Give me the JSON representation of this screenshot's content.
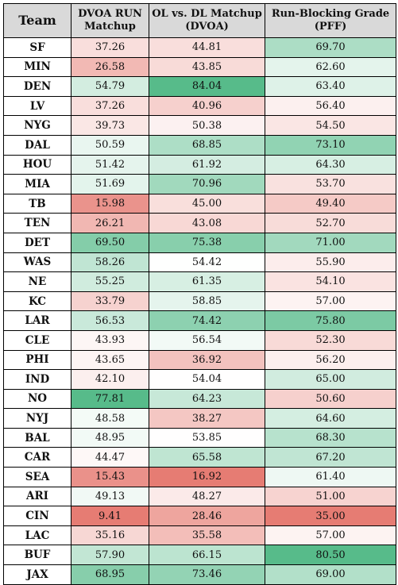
{
  "headers": {
    "team": "Team",
    "dvoa_line1": "DVOA RUN",
    "dvoa_line2": "Matchup",
    "ol_line1": "OL vs. DL Matchup",
    "ol_line2": "(DVOA)",
    "grade_line1": "Run-Blocking Grade",
    "grade_line2": "(PFF)"
  },
  "rows": [
    {
      "team": "SF",
      "dvoa": "37.26",
      "ol": "44.81",
      "grade": "69.70"
    },
    {
      "team": "MIN",
      "dvoa": "26.58",
      "ol": "43.85",
      "grade": "62.60"
    },
    {
      "team": "DEN",
      "dvoa": "54.79",
      "ol": "84.04",
      "grade": "63.40"
    },
    {
      "team": "LV",
      "dvoa": "37.26",
      "ol": "40.96",
      "grade": "56.40"
    },
    {
      "team": "NYG",
      "dvoa": "39.73",
      "ol": "50.38",
      "grade": "54.50"
    },
    {
      "team": "DAL",
      "dvoa": "50.59",
      "ol": "68.85",
      "grade": "73.10"
    },
    {
      "team": "HOU",
      "dvoa": "51.42",
      "ol": "61.92",
      "grade": "64.30"
    },
    {
      "team": "MIA",
      "dvoa": "51.69",
      "ol": "70.96",
      "grade": "53.70"
    },
    {
      "team": "TB",
      "dvoa": "15.98",
      "ol": "45.00",
      "grade": "49.40"
    },
    {
      "team": "TEN",
      "dvoa": "26.21",
      "ol": "43.08",
      "grade": "52.70"
    },
    {
      "team": "DET",
      "dvoa": "69.50",
      "ol": "75.38",
      "grade": "71.00"
    },
    {
      "team": "WAS",
      "dvoa": "58.26",
      "ol": "54.42",
      "grade": "55.90"
    },
    {
      "team": "NE",
      "dvoa": "55.25",
      "ol": "61.35",
      "grade": "54.10"
    },
    {
      "team": "KC",
      "dvoa": "33.79",
      "ol": "58.85",
      "grade": "57.00"
    },
    {
      "team": "LAR",
      "dvoa": "56.53",
      "ol": "74.42",
      "grade": "75.80"
    },
    {
      "team": "CLE",
      "dvoa": "43.93",
      "ol": "56.54",
      "grade": "52.30"
    },
    {
      "team": "PHI",
      "dvoa": "43.65",
      "ol": "36.92",
      "grade": "56.20"
    },
    {
      "team": "IND",
      "dvoa": "42.10",
      "ol": "54.04",
      "grade": "65.00"
    },
    {
      "team": "NO",
      "dvoa": "77.81",
      "ol": "64.23",
      "grade": "50.60"
    },
    {
      "team": "NYJ",
      "dvoa": "48.58",
      "ol": "38.27",
      "grade": "64.60"
    },
    {
      "team": "BAL",
      "dvoa": "48.95",
      "ol": "53.85",
      "grade": "68.30"
    },
    {
      "team": "CAR",
      "dvoa": "44.47",
      "ol": "65.58",
      "grade": "67.20"
    },
    {
      "team": "SEA",
      "dvoa": "15.43",
      "ol": "16.92",
      "grade": "61.40"
    },
    {
      "team": "ARI",
      "dvoa": "49.13",
      "ol": "48.27",
      "grade": "51.00"
    },
    {
      "team": "CIN",
      "dvoa": "9.41",
      "ol": "28.46",
      "grade": "35.00"
    },
    {
      "team": "LAC",
      "dvoa": "35.16",
      "ol": "35.58",
      "grade": "57.00"
    },
    {
      "team": "BUF",
      "dvoa": "57.90",
      "ol": "66.15",
      "grade": "80.50"
    },
    {
      "team": "JAX",
      "dvoa": "68.95",
      "ol": "73.46",
      "grade": "69.00"
    }
  ],
  "colors": {
    "low": "#e67c73",
    "mid": "#ffffff",
    "high": "#57bb8a",
    "header_bg": "#d9d9d9",
    "border": "#000000"
  }
}
